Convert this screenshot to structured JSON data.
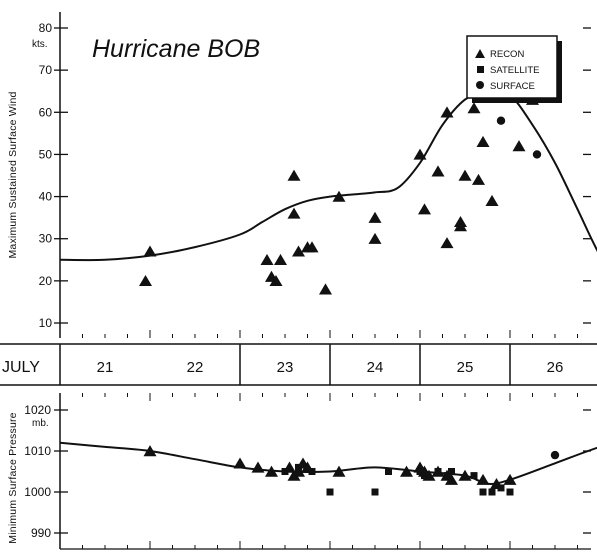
{
  "chart_data": [
    {
      "type": "scatter",
      "title": "Hurricane BOB",
      "ylabel": "Maximum Sustained Surface Wind",
      "yunit": "kts.",
      "ylim": [
        5,
        82
      ],
      "yticks": [
        10,
        20,
        30,
        40,
        50,
        60,
        70,
        80
      ],
      "xlim": [
        20.0,
        26.9
      ],
      "legend": {
        "position": "top-right",
        "entries": [
          {
            "name": "RECON",
            "marker": "triangle"
          },
          {
            "name": "SATELLITE",
            "marker": "square"
          },
          {
            "name": "SURFACE",
            "marker": "circle"
          }
        ]
      },
      "best_track": {
        "x": [
          20.0,
          20.5,
          21.0,
          21.5,
          22.0,
          22.25,
          22.5,
          22.75,
          23.0,
          23.25,
          23.5,
          23.75,
          24.0,
          24.25,
          24.5,
          24.75,
          25.0,
          25.25,
          25.5,
          25.75,
          26.0,
          26.25
        ],
        "y": [
          25,
          25,
          26,
          28,
          31,
          34,
          37,
          39,
          40,
          40.5,
          41,
          42,
          48,
          57,
          63,
          65,
          64,
          57,
          48,
          37,
          26,
          18
        ]
      },
      "series": [
        {
          "name": "RECON",
          "x": [
            21.0,
            20.95,
            22.6,
            22.6,
            22.3,
            22.45,
            22.35,
            22.4,
            22.75,
            22.65,
            22.8,
            22.95,
            23.1,
            23.5,
            23.5,
            24.0,
            24.2,
            24.05,
            24.3,
            24.45,
            24.45,
            24.3,
            24.7,
            24.5,
            24.65,
            24.8,
            24.6,
            25.0,
            25.15,
            25.1,
            25.25,
            24.8
          ],
          "y": [
            27,
            20,
            45,
            36,
            25,
            25,
            21,
            20,
            28,
            27,
            28,
            18,
            40,
            35,
            30,
            50,
            46,
            37,
            29,
            33,
            34,
            60,
            53,
            45,
            44,
            65,
            61,
            70,
            65,
            52,
            63,
            39
          ]
        },
        {
          "name": "SURFACE",
          "x": [
            24.9,
            25.3
          ],
          "y": [
            58,
            50
          ]
        }
      ]
    },
    {
      "type": "scatter",
      "ylabel": "Minimum Surface Pressure",
      "yunit": "mb.",
      "ylim": [
        986,
        1024
      ],
      "yticks": [
        990,
        1000,
        1010,
        1020
      ],
      "xlim": [
        20.0,
        26.9
      ],
      "best_track": {
        "x": [
          20.0,
          20.5,
          21.0,
          21.5,
          22.0,
          22.5,
          23.0,
          23.5,
          24.0,
          24.5,
          24.75,
          25.0,
          25.5,
          26.0,
          26.5
        ],
        "y": [
          1012,
          1011,
          1010,
          1008,
          1006,
          1005,
          1005,
          1006,
          1005,
          1004,
          1002,
          1003,
          1007,
          1011,
          1014
        ]
      },
      "series": [
        {
          "name": "RECON",
          "x": [
            21.0,
            22.0,
            22.2,
            22.35,
            22.6,
            22.7,
            22.75,
            22.55,
            22.65,
            23.1,
            23.85,
            24.0,
            24.05,
            24.1,
            24.2,
            24.3,
            24.35,
            24.5,
            24.7,
            24.85,
            25.0
          ],
          "y": [
            1010,
            1007,
            1006,
            1005,
            1004,
            1007,
            1006,
            1006,
            1005,
            1005,
            1005,
            1006,
            1005,
            1004,
            1005,
            1004,
            1003,
            1004,
            1003,
            1002,
            1003
          ]
        },
        {
          "name": "SATELLITE",
          "x": [
            22.5,
            22.65,
            22.8,
            23.0,
            23.5,
            23.65,
            24.0,
            24.05,
            24.2,
            24.3,
            24.35,
            24.6,
            24.7,
            24.8,
            24.9,
            25.0
          ],
          "y": [
            1005,
            1006,
            1005,
            1000,
            1000,
            1005,
            1005,
            1004,
            1005,
            1004,
            1005,
            1004,
            1000,
            1000,
            1001,
            1000
          ]
        },
        {
          "name": "SURFACE",
          "x": [
            25.5
          ],
          "y": [
            1009
          ]
        }
      ]
    }
  ],
  "xaxis": {
    "month_label": "JULY",
    "day_labels": [
      {
        "day": 21,
        "label": "21"
      },
      {
        "day": 22,
        "label": "22"
      },
      {
        "day": 23,
        "label": "23"
      },
      {
        "day": 24,
        "label": "24"
      },
      {
        "day": 25,
        "label": "25"
      },
      {
        "day": 26,
        "label": "26"
      }
    ],
    "day_boundaries": [
      22,
      23,
      24,
      25,
      26
    ]
  }
}
